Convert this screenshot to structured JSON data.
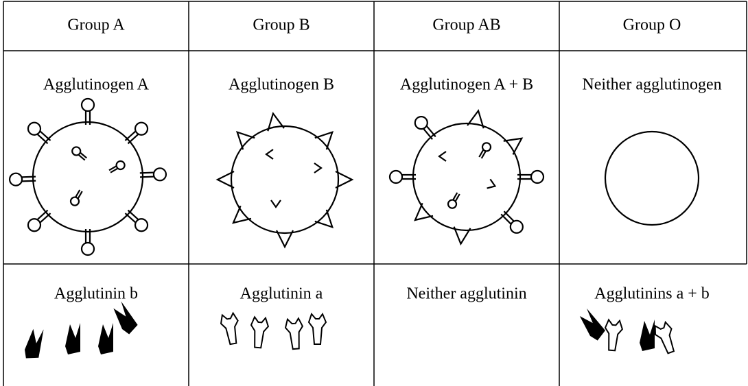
{
  "table": {
    "header": [
      "Group A",
      "Group B",
      "Group AB",
      "Group O"
    ],
    "rows": [
      [
        "Agglutinogen A",
        "Agglutinogen B",
        "Agglutinogen A + B",
        "Neither agglutinogen"
      ],
      [
        "Agglutinin b",
        "Agglutinin a",
        "Neither agglutinin",
        "Agglutinins a + b"
      ]
    ]
  }
}
